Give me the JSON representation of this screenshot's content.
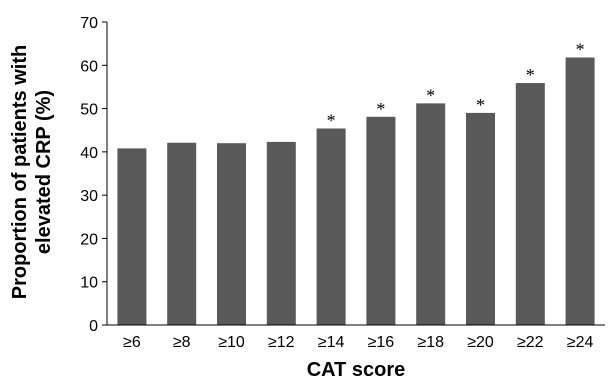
{
  "chart_data": {
    "type": "bar",
    "title": "",
    "xlabel": "CAT score",
    "ylabel_lines": [
      "Proportion of patients with",
      "elevated CRP (%)"
    ],
    "categories": [
      "≥6",
      "≥8",
      "≥10",
      "≥12",
      "≥14",
      "≥16",
      "≥18",
      "≥20",
      "≥22",
      "≥24"
    ],
    "values": [
      40.8,
      42.1,
      42.0,
      42.3,
      45.4,
      48.1,
      51.2,
      49.0,
      55.9,
      61.8
    ],
    "annotations": [
      "",
      "",
      "",
      "",
      "*",
      "*",
      "*",
      "*",
      "*",
      "*"
    ],
    "ylim": [
      0,
      70
    ],
    "yticks": [
      0,
      10,
      20,
      30,
      40,
      50,
      60,
      70
    ],
    "grid": false,
    "legend": "none",
    "bar_color": "#595959",
    "axis_color": "#000000"
  }
}
